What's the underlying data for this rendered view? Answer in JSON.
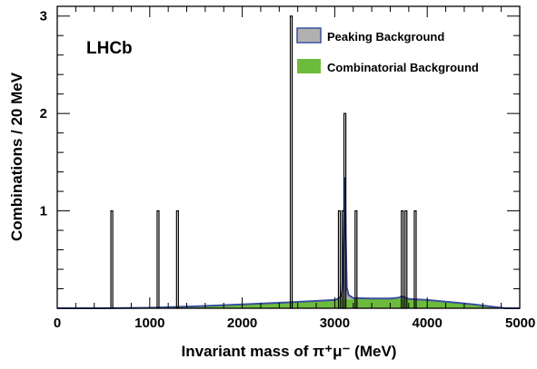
{
  "chart_data": {
    "type": "bar",
    "experiment_label": "LHCb",
    "xlabel": "Invariant mass of π⁺μ⁻ (MeV)",
    "ylabel": "Combinations / 20 MeV",
    "xlim": [
      0,
      5000
    ],
    "ylim": [
      0,
      3.1
    ],
    "bin_width": 20,
    "x_ticks": [
      0,
      1000,
      2000,
      3000,
      4000,
      5000
    ],
    "x_tick_labels": [
      "0",
      "1000",
      "2000",
      "3000",
      "4000",
      "5000"
    ],
    "y_ticks": [
      1,
      2,
      3
    ],
    "y_tick_labels": [
      "1",
      "2",
      "3"
    ],
    "legend": {
      "position": "top-right",
      "entries": [
        {
          "label": "Peaking Background",
          "color": "#b0b0b0",
          "edge": "#3a4fa0"
        },
        {
          "label": "Combinatorial Background",
          "color": "#6dbb3c"
        }
      ]
    },
    "data_histogram": {
      "name": "data",
      "bins": [
        {
          "x": 580,
          "count": 1
        },
        {
          "x": 1080,
          "count": 1
        },
        {
          "x": 1290,
          "count": 1
        },
        {
          "x": 2520,
          "count": 3
        },
        {
          "x": 3040,
          "count": 1
        },
        {
          "x": 3080,
          "count": 1
        },
        {
          "x": 3100,
          "count": 2
        },
        {
          "x": 3220,
          "count": 1
        },
        {
          "x": 3720,
          "count": 1
        },
        {
          "x": 3760,
          "count": 1
        },
        {
          "x": 3860,
          "count": 1
        }
      ]
    },
    "series": [
      {
        "name": "Peaking Background",
        "color": "#b0b0b0",
        "x": [
          0,
          500,
          1000,
          1500,
          2000,
          2500,
          3000,
          3040,
          3070,
          3080,
          3090,
          3100,
          3110,
          3120,
          3130,
          3150,
          3200,
          3400,
          3600,
          3700,
          3720,
          3740,
          3760,
          3800,
          4000,
          4500,
          4840,
          5000
        ],
        "values": [
          0.0,
          0.0,
          0.0,
          0.0,
          0.0,
          0.0,
          0.0,
          0.01,
          0.03,
          0.08,
          0.3,
          0.75,
          1.25,
          0.6,
          0.12,
          0.04,
          0.01,
          0.0,
          0.0,
          0.01,
          0.02,
          0.02,
          0.01,
          0.0,
          0.0,
          0.0,
          0.0,
          0.0
        ]
      },
      {
        "name": "Combinatorial Background",
        "color": "#6dbb3c",
        "x": [
          0,
          500,
          1000,
          1500,
          2000,
          2500,
          3000,
          3040,
          3070,
          3080,
          3090,
          3100,
          3110,
          3120,
          3130,
          3150,
          3200,
          3400,
          3600,
          3700,
          3720,
          3740,
          3760,
          3800,
          4000,
          4500,
          4840,
          5000
        ],
        "values": [
          0.0,
          0.0,
          0.005,
          0.02,
          0.04,
          0.06,
          0.085,
          0.09,
          0.095,
          0.095,
          0.095,
          0.095,
          0.095,
          0.095,
          0.095,
          0.095,
          0.095,
          0.1,
          0.1,
          0.1,
          0.1,
          0.1,
          0.1,
          0.095,
          0.085,
          0.04,
          0.0,
          0.0
        ]
      }
    ]
  }
}
